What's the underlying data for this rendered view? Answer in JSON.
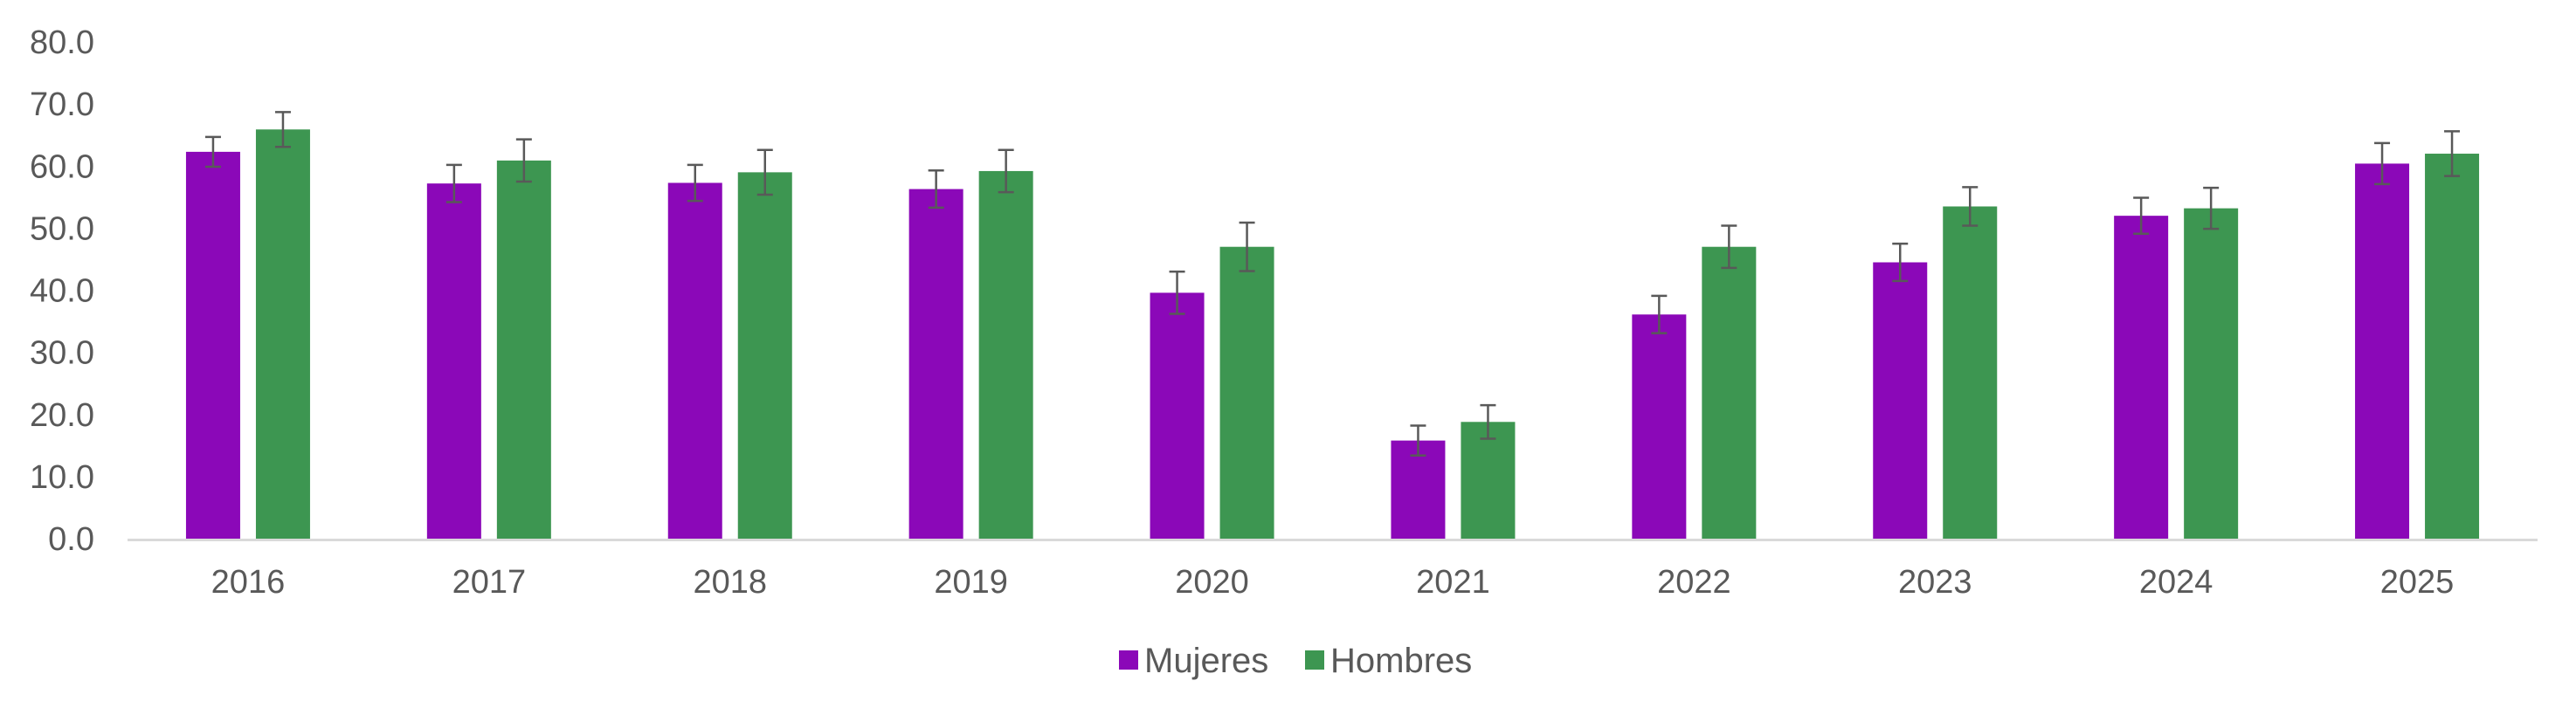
{
  "chart_data": {
    "type": "bar",
    "title": "",
    "xlabel": "",
    "ylabel": "",
    "ylim": [
      0,
      80
    ],
    "yticks": [
      "0.0",
      "10.0",
      "20.0",
      "30.0",
      "40.0",
      "50.0",
      "60.0",
      "70.0",
      "80.0"
    ],
    "categories": [
      "2016",
      "2017",
      "2018",
      "2019",
      "2020",
      "2021",
      "2022",
      "2023",
      "2024",
      "2025"
    ],
    "series": [
      {
        "name": "Mujeres",
        "color": "#8B08B8",
        "values": [
          62.3,
          57.2,
          57.3,
          56.3,
          39.6,
          15.8,
          36.1,
          44.5,
          52.0,
          60.4
        ],
        "error": [
          2.4,
          3.0,
          2.9,
          3.0,
          3.4,
          2.4,
          3.0,
          3.0,
          2.9,
          3.3
        ]
      },
      {
        "name": "Hombres",
        "color": "#3D9651",
        "values": [
          65.9,
          60.9,
          59.0,
          59.2,
          47.0,
          18.8,
          47.0,
          53.5,
          53.2,
          62.0
        ],
        "error": [
          2.8,
          3.4,
          3.6,
          3.4,
          3.9,
          2.7,
          3.4,
          3.1,
          3.3,
          3.6
        ]
      }
    ],
    "legend_position": "bottom-center",
    "grid": false
  }
}
